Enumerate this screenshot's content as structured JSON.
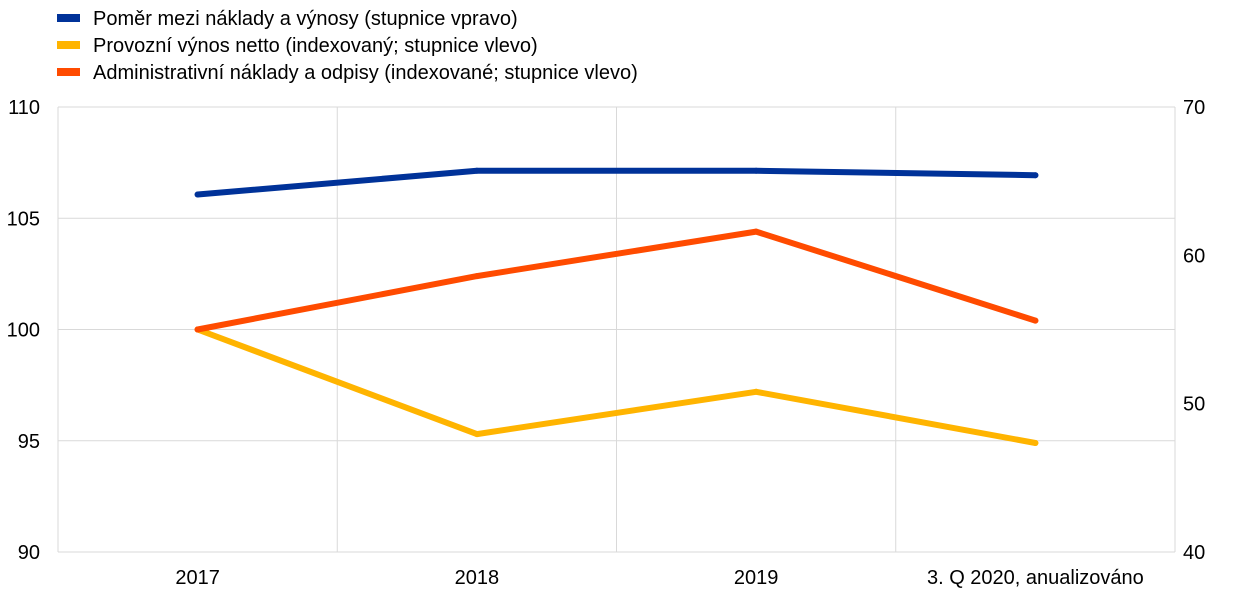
{
  "chart_data": {
    "type": "line",
    "title": "",
    "categories": [
      "2017",
      "2018",
      "2019",
      "3. Q 2020, anualizováno"
    ],
    "series": [
      {
        "name": "Poměr mezi náklady a výnosy (stupnice vpravo)",
        "axis": "right",
        "color": "#003299",
        "values": [
          64.1,
          65.7,
          65.7,
          65.4
        ]
      },
      {
        "name": "Provozní výnos netto (indexovaný; stupnice vlevo)",
        "axis": "left",
        "color": "#FFB400",
        "values": [
          100,
          95.3,
          97.2,
          94.9
        ]
      },
      {
        "name": "Administrativní náklady a odpisy (indexované; stupnice vlevo)",
        "axis": "left",
        "color": "#FF4B00",
        "values": [
          100,
          102.4,
          104.4,
          100.4
        ]
      }
    ],
    "y_left": {
      "min": 90,
      "max": 110,
      "ticks": [
        "90",
        "95",
        "100",
        "105",
        "110"
      ]
    },
    "y_right": {
      "min": 40,
      "max": 70,
      "ticks": [
        "40",
        "50",
        "60",
        "70"
      ]
    },
    "grid": true,
    "legend_position": "top-left"
  }
}
